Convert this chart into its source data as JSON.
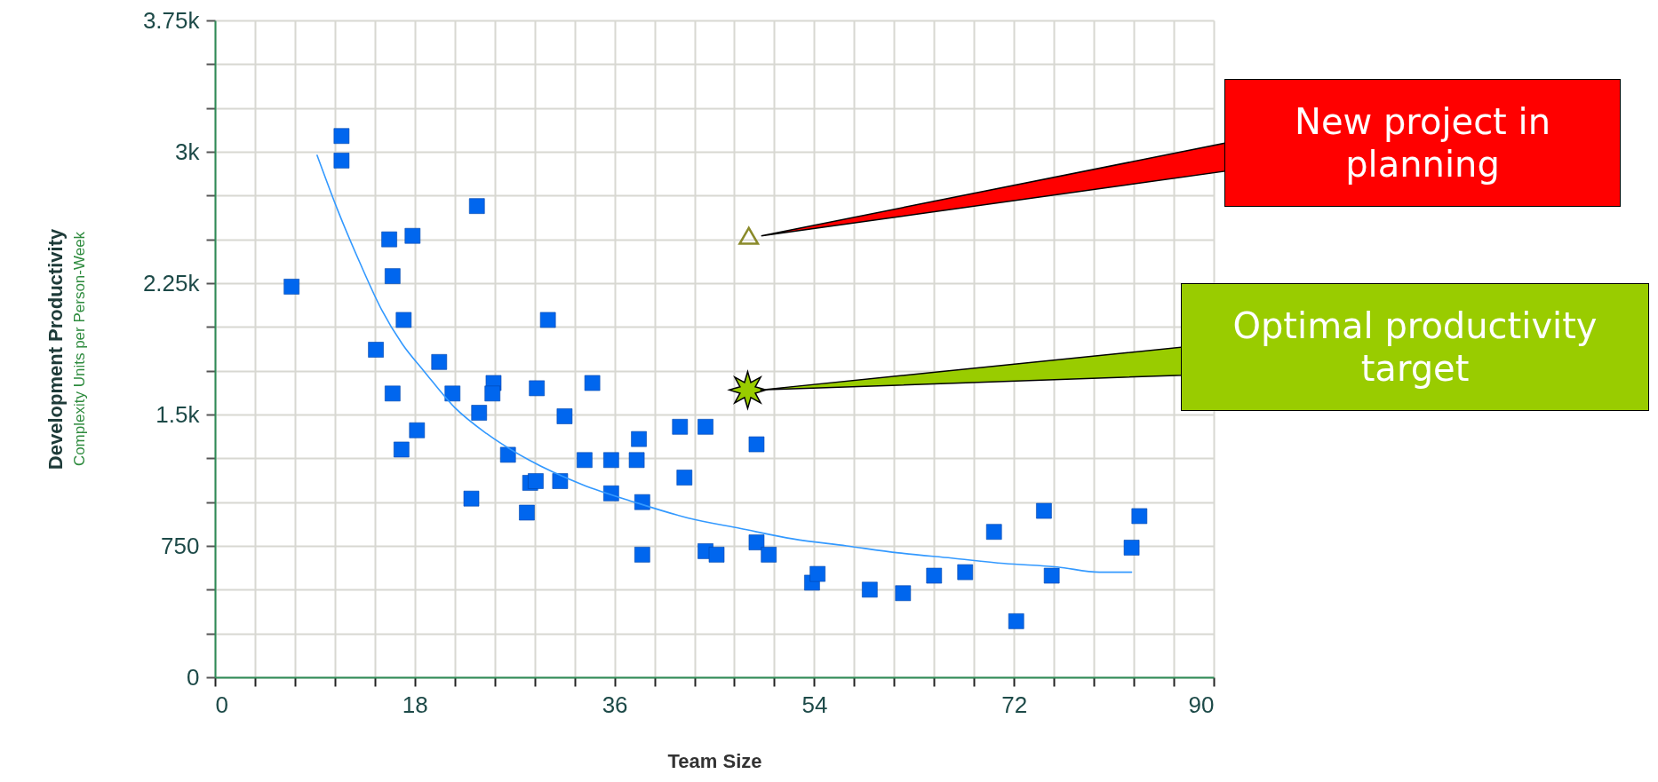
{
  "chart_data": {
    "type": "scatter",
    "xlabel": "Team Size",
    "ylabel": "Development Productivity",
    "xlim": [
      0,
      90
    ],
    "ylim": [
      0,
      3750
    ],
    "xticks": [
      0,
      {
        "value": 3.6,
        "label": null
      },
      {
        "value": 7.2,
        "label": null
      },
      {
        "value": 10.8,
        "label": null
      },
      {
        "value": 14.4,
        "label": null
      },
      18,
      {
        "value": 21.6,
        "label": null
      },
      {
        "value": 25.2,
        "label": null
      },
      {
        "value": 28.8,
        "label": null
      },
      {
        "value": 32.4,
        "label": null
      },
      36,
      {
        "value": 39.6,
        "label": null
      },
      {
        "value": 43.2,
        "label": null
      },
      {
        "value": 46.8,
        "label": null
      },
      {
        "value": 50.4,
        "label": null
      },
      54,
      {
        "value": 57.6,
        "label": null
      },
      {
        "value": 61.2,
        "label": null
      },
      {
        "value": 64.8,
        "label": null
      },
      {
        "value": 68.4,
        "label": null
      },
      72,
      {
        "value": 75.6,
        "label": null
      },
      {
        "value": 79.2,
        "label": null
      },
      {
        "value": 82.8,
        "label": null
      },
      {
        "value": 86.4,
        "label": null
      },
      90
    ],
    "yticks": [
      0,
      {
        "value": 250,
        "label": null
      },
      {
        "value": 500,
        "label": null
      },
      750,
      {
        "value": 1000,
        "label": null
      },
      {
        "value": 1250,
        "label": null
      },
      {
        "value": 1500,
        "label": "1.5k"
      },
      {
        "value": 1750,
        "label": null
      },
      {
        "value": 2000,
        "label": null
      },
      {
        "value": 2250,
        "label": "2.25k"
      },
      {
        "value": 2500,
        "label": null
      },
      {
        "value": 2750,
        "label": null
      },
      {
        "value": 3000,
        "label": "3k"
      },
      {
        "value": 3250,
        "label": null
      },
      {
        "value": 3500,
        "label": null
      },
      {
        "value": 3750,
        "label": "3.75k"
      }
    ],
    "grid": true,
    "series": [
      {
        "marker": "square",
        "color": "#0066ee",
        "x": [
          6.9,
          11.4,
          11.4,
          15.7,
          17.8,
          16.0,
          17.0,
          14.5,
          23.6,
          16.0,
          20.2,
          21.4,
          16.8,
          18.2,
          23.8,
          25.1,
          25.0,
          26.4,
          23.1,
          28.1,
          28.4,
          28.9,
          29.0,
          30.0,
          31.1,
          31.5,
          33.3,
          34.0,
          35.7,
          35.7,
          38.0,
          38.2,
          38.5,
          38.5,
          41.9,
          42.3,
          44.2,
          44.2,
          45.2,
          48.8,
          48.8,
          49.9,
          53.8,
          54.3,
          59.0,
          62.0,
          64.8,
          67.6,
          70.2,
          72.2,
          74.7,
          75.4,
          82.6,
          83.3
        ],
        "values": [
          2230,
          3090,
          2950,
          2500,
          2520,
          2290,
          2040,
          1870,
          2690,
          1620,
          1800,
          1620,
          1300,
          1410,
          1510,
          1680,
          1620,
          1270,
          1020,
          940,
          1110,
          1120,
          1650,
          2040,
          1120,
          1490,
          1240,
          1680,
          1240,
          1050,
          1240,
          1360,
          1000,
          700,
          1430,
          1140,
          1430,
          720,
          700,
          1330,
          770,
          700,
          540,
          590,
          500,
          480,
          580,
          600,
          830,
          320,
          950,
          580,
          740,
          920
        ]
      },
      {
        "type": "line",
        "color": "#3399ff",
        "x": [
          9.2,
          11.1,
          13.1,
          15.0,
          16.9,
          18.8,
          21.6,
          24.5,
          28.3,
          33.1,
          37.8,
          42.6,
          47.3,
          52.1,
          56.9,
          61.6,
          66.4,
          71.1,
          75.9,
          79.7,
          82.6
        ],
        "values": [
          2980,
          2660,
          2360,
          2100,
          1900,
          1750,
          1540,
          1390,
          1240,
          1100,
          1000,
          910,
          850,
          790,
          750,
          710,
          680,
          650,
          630,
          600,
          600
        ]
      },
      {
        "marker": "triangle",
        "color": "#8a8a2a",
        "x": [
          48.1
        ],
        "values": [
          2520
        ]
      },
      {
        "marker": "star",
        "color": "#99cc00",
        "x": [
          48.0
        ],
        "values": [
          1640
        ]
      }
    ],
    "annotations": [
      "New project in planning",
      "Optimal productivity target",
      "Complexity Units per Person-Week"
    ]
  }
}
